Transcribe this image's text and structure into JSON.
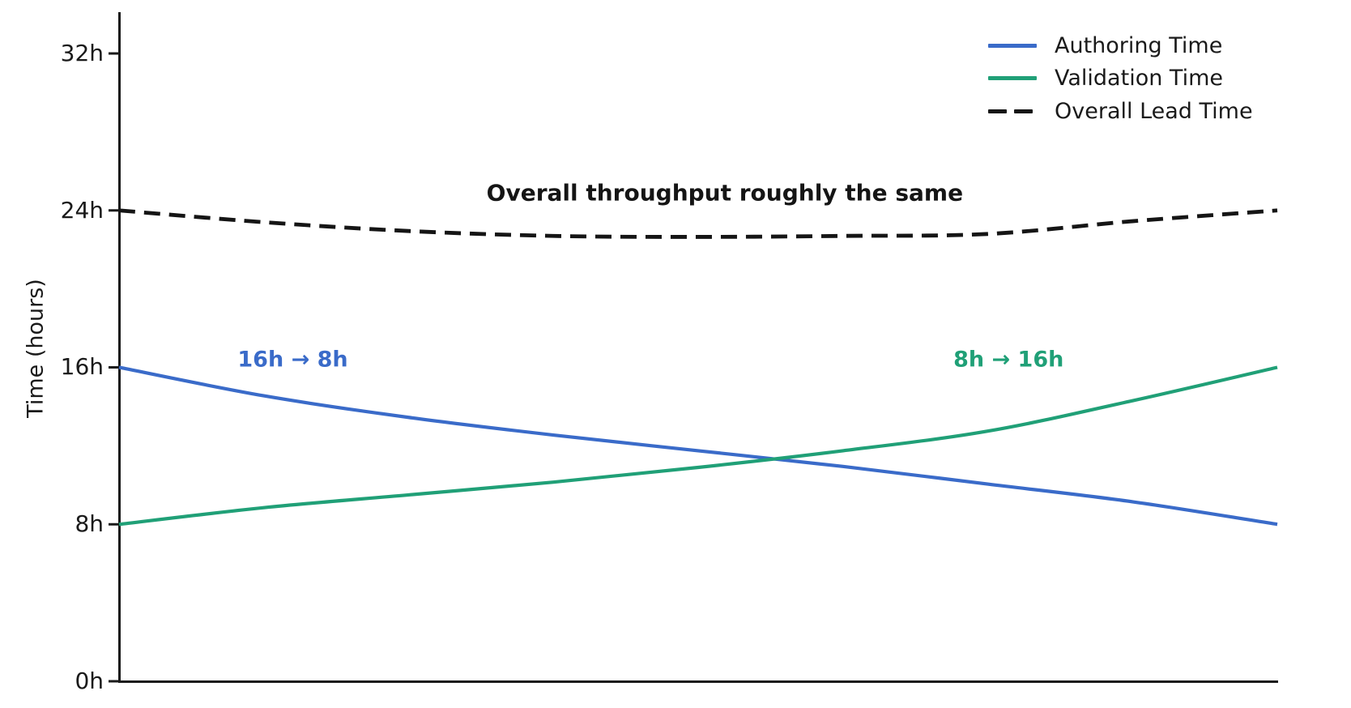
{
  "chart_data": {
    "type": "line",
    "background": "#ffffff",
    "axis_color": "#1a1a1a",
    "grid": false,
    "legend_position": "upper right",
    "x": [
      0,
      0.125,
      0.25,
      0.375,
      0.5,
      0.625,
      0.75,
      0.875,
      1
    ],
    "x_axis": {
      "label": "",
      "tick_labels": [],
      "range": [
        0,
        1
      ]
    },
    "y_axis": {
      "label": "Time (hours)",
      "range": [
        0,
        34
      ],
      "ticks": [
        {
          "hours": 0,
          "label": "0h"
        },
        {
          "hours": 8,
          "label": "8h"
        },
        {
          "hours": 16,
          "label": "16h"
        },
        {
          "hours": 24,
          "label": "24h"
        },
        {
          "hours": 32,
          "label": "32h"
        }
      ]
    },
    "series": [
      {
        "name": "Authoring Time",
        "color": "#3a6bc9",
        "style": "solid",
        "values": [
          16,
          14.55,
          13.45,
          12.55,
          11.75,
          10.95,
          10.05,
          9.15,
          8
        ]
      },
      {
        "name": "Validation Time",
        "color": "#20a077",
        "style": "solid",
        "values": [
          8,
          8.85,
          9.5,
          10.15,
          10.9,
          11.75,
          12.75,
          14.3,
          16
        ]
      },
      {
        "name": "Overall Lead Time",
        "color": "#151515",
        "style": "dashed",
        "values": [
          24,
          23.4,
          22.95,
          22.7,
          22.65,
          22.7,
          22.8,
          23.45,
          24
        ]
      }
    ],
    "annotations": [
      {
        "text": "Overall throughput roughly the same",
        "color": "#151515",
        "x": 0.523,
        "y_hours": 24.9,
        "bold": true
      },
      {
        "text": "16h → 8h",
        "color": "#3a6bc9",
        "x": 0.15,
        "y_hours": 16.4,
        "bold": true
      },
      {
        "text": "8h → 16h",
        "color": "#20a077",
        "x": 0.768,
        "y_hours": 16.4,
        "bold": true
      }
    ]
  }
}
